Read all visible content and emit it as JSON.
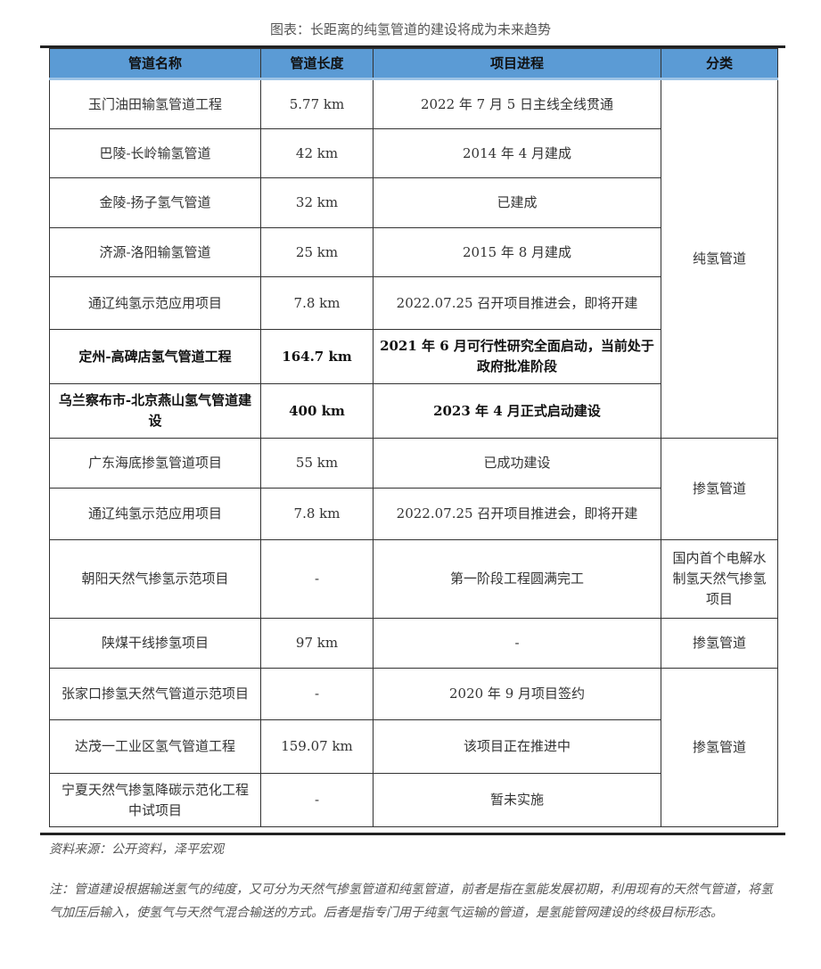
{
  "title": "图表：长距离的纯氢管道的建设将成为未来趋势",
  "headers": [
    "管道名称",
    "管道长度",
    "项目进程",
    "分类"
  ],
  "rows": [
    {
      "name": "玉门油田输氢管道工程",
      "length": "5.77 km",
      "progress": "2022 年 7 月 5 日主线全线贯通"
    },
    {
      "name": "巴陵-长岭输氢管道",
      "length": "42 km",
      "progress": "2014 年 4 月建成"
    },
    {
      "name": "金陵-扬子氢气管道",
      "length": "32 km",
      "progress": "已建成"
    },
    {
      "name": "济源-洛阳输氢管道",
      "length": "25 km",
      "progress": "2015 年 8 月建成"
    },
    {
      "name": "通辽纯氢示范应用项目",
      "length": "7.8 km",
      "progress": "2022.07.25 召开项目推进会，即将开建"
    },
    {
      "name": "定州-高碑店氢气管道工程",
      "length": "164.7 km",
      "progress": "2021 年 6 月可行性研究全面启动，当前处于政府批准阶段"
    },
    {
      "name": "乌兰察布市-北京燕山氢气管道建设",
      "length": "400 km",
      "progress": "2023 年 4 月正式启动建设"
    },
    {
      "name": "广东海底掺氢管道项目",
      "length": "55 km",
      "progress": "已成功建设"
    },
    {
      "name": "通辽纯氢示范应用项目",
      "length": "7.8 km",
      "progress": "2022.07.25 召开项目推进会，即将开建"
    },
    {
      "name": "朝阳天然气掺氢示范项目",
      "length": "-",
      "progress": "第一阶段工程圆满完工"
    },
    {
      "name": "陕煤干线掺氢项目",
      "length": "97 km",
      "progress": "-"
    },
    {
      "name": "张家口掺氢天然气管道示范项目",
      "length": "-",
      "progress": "2020 年 9 月项目签约"
    },
    {
      "name": "达茂一工业区氢气管道工程",
      "length": "159.07 km",
      "progress": "该项目正在推进中"
    },
    {
      "name": "宁夏天然气掺氢降碳示范化工程中试项目",
      "length": "-",
      "progress": "暂未实施"
    }
  ],
  "categories": [
    "纯氢管道",
    "掺氢管道",
    "国内首个电解水制氢天然气掺氢项目",
    "掺氢管道",
    "掺氢管道"
  ],
  "source": "资料来源：公开资料，泽平宏观",
  "note": "注：管道建设根据输送氢气的纯度，又可分为天然气掺氢管道和纯氢管道，前者是指在氢能发展初期，利用现有的天然气管道，将氢气加压后输入，使氢气与天然气混合输送的方式。后者是指专门用于纯氢气运输的管道，是氢能管网建设的终极目标形态。"
}
